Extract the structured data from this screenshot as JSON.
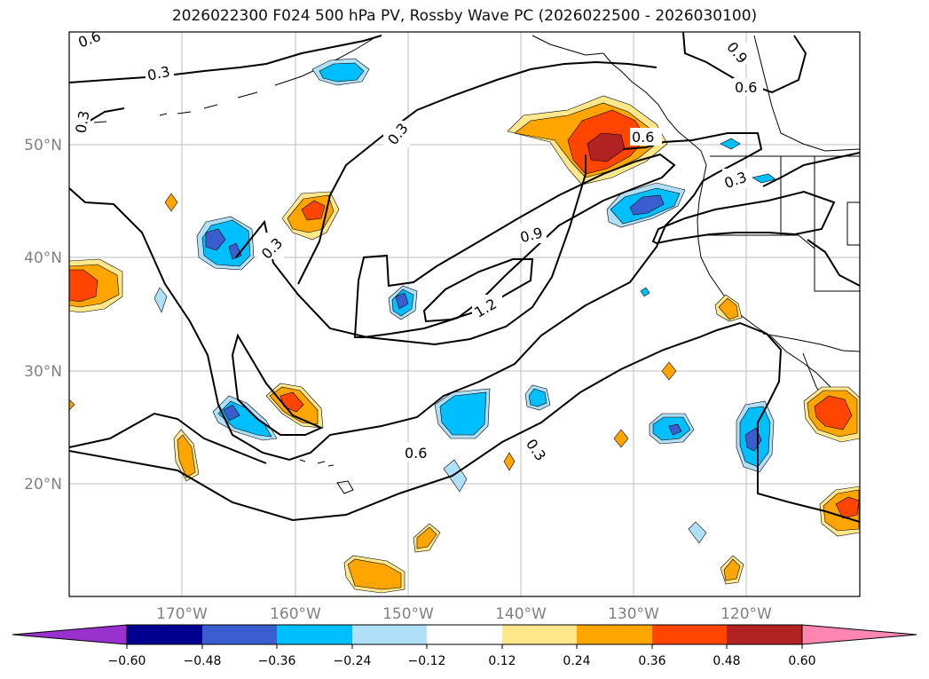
{
  "title": "2026022300 F024 500 hPa PV, Rossby Wave PC (2026022500 - 2026030100)",
  "map": {
    "lon_labels": [
      "170°W",
      "160°W",
      "150°W",
      "140°W",
      "130°W",
      "120°W"
    ],
    "lat_labels": [
      "50°N",
      "40°N",
      "30°N",
      "20°N"
    ]
  },
  "contour_labels": [
    "0.6",
    "0.3",
    "0.3",
    "0.3",
    "0.3",
    "0.9",
    "0.6",
    "0.6",
    "0.3",
    "0.9",
    "1.2",
    "0.6",
    "0.3"
  ],
  "colorbar": {
    "colors": [
      "#9932cc",
      "#000090",
      "#3a5ed0",
      "#00bfff",
      "#b0e0f8",
      "#ffffff",
      "#ffe88c",
      "#ffa500",
      "#ff4500",
      "#b22222",
      "#ff86b0"
    ],
    "tick_labels": [
      "−0.60",
      "−0.48",
      "−0.36",
      "−0.24",
      "−0.12",
      "0.12",
      "0.24",
      "0.36",
      "0.48",
      "0.60"
    ]
  }
}
